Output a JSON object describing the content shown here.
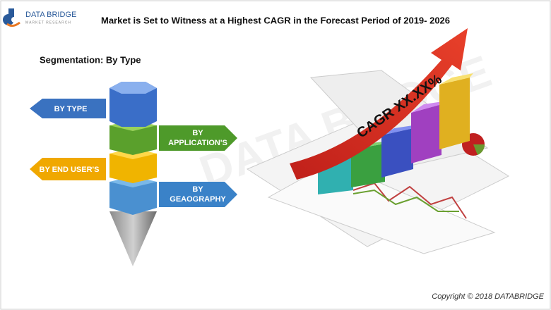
{
  "logo": {
    "name": "DATA BRIDGE",
    "tagline": "MARKET RESEARCH"
  },
  "title": "Market is Set to Witness at a Highest CAGR in the Forecast Period of 2019- 2026",
  "subtitle": "Segmentation: By Type",
  "watermark": "DATA BRIDGE",
  "segments": [
    {
      "lines": [
        "BY TYPE"
      ]
    },
    {
      "lines": [
        "BY",
        "APPLICATION'S"
      ]
    },
    {
      "lines": [
        "BY END USER'S"
      ]
    },
    {
      "lines": [
        "BY",
        "GEAOGRAPHY"
      ]
    }
  ],
  "growth_label": "CAGR XX.XX%",
  "copyright": "Copyright © 2018 DATABRIDGE"
}
